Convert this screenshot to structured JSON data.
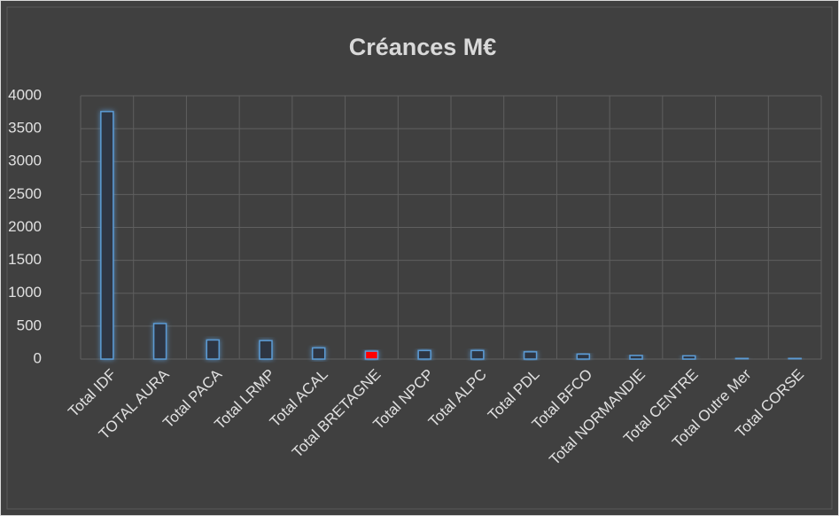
{
  "chart_data": {
    "type": "bar",
    "title": "Créances M€",
    "categories": [
      "Total IDF",
      "TOTAL AURA",
      "Total PACA",
      "Total LRMP",
      "Total ACAL",
      "Total BRETAGNE",
      "Total NPCP",
      "Total ALPC",
      "Total PDL",
      "Total BFCO",
      "Total NORMANDIE",
      "Total CENTRE",
      "Total Outre Mer",
      "Total CORSE"
    ],
    "values": [
      3760,
      540,
      290,
      280,
      170,
      120,
      130,
      130,
      110,
      75,
      55,
      50,
      15,
      15
    ],
    "color": "#5b9bd5",
    "colors": [
      "#2d3643",
      "#2d3643",
      "#2d3643",
      "#2d3643",
      "#2d3643",
      "#ff0000",
      "#2d3643",
      "#2d3643",
      "#2d3643",
      "#2d3643",
      "#2d3643",
      "#2d3643",
      "#2d3643",
      "#2d3643"
    ],
    "ylim": [
      0,
      4000
    ],
    "yticks": [
      0,
      500,
      1000,
      1500,
      2000,
      2500,
      3000,
      3500,
      4000
    ],
    "grid": true
  }
}
